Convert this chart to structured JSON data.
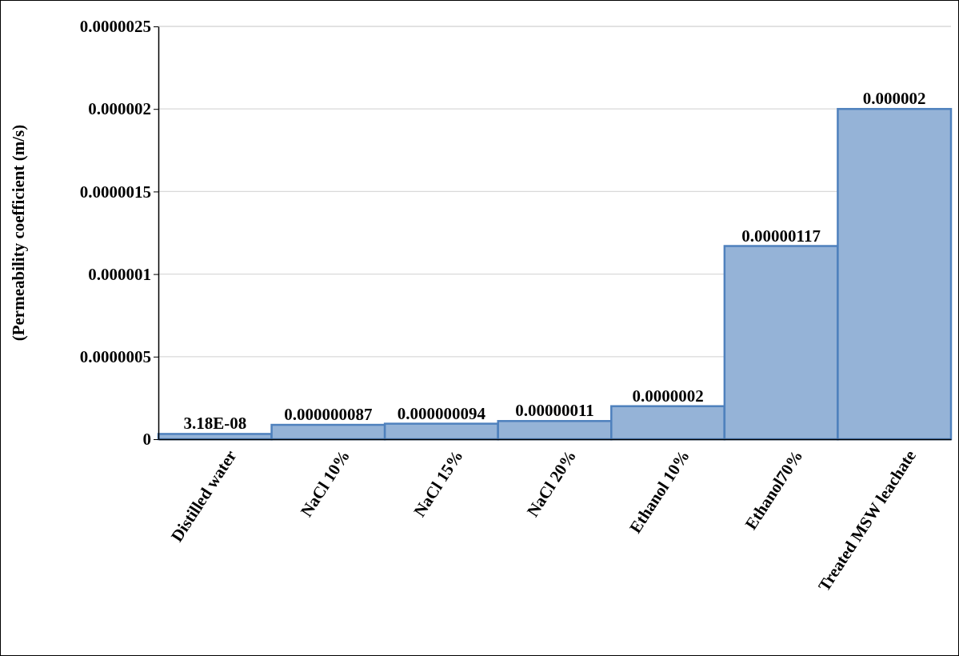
{
  "chart_data": {
    "type": "bar",
    "ylabel": "(Permeability coefficient (m/s)",
    "categories": [
      "Distilled water",
      "NaCl 10%",
      "NaCl 15%",
      "NaCl 20%",
      "Ethanol 10%",
      "Ethanol70%",
      "Treated MSW leachate"
    ],
    "values": [
      3.18e-08,
      8.7e-08,
      9.4e-08,
      1.1e-07,
      2e-07,
      1.17e-06,
      2e-06
    ],
    "value_labels": [
      "3.18E-08",
      "0.000000087",
      "0.000000094",
      "0.00000011",
      "0.0000002",
      "0.00000117",
      "0.000002"
    ],
    "color": "#95b3d7",
    "ylim": [
      0,
      2.5e-06
    ],
    "yticks": [
      {
        "value": 0,
        "label": "0"
      },
      {
        "value": 5e-07,
        "label": "0.0000005"
      },
      {
        "value": 1e-06,
        "label": "0.000001"
      },
      {
        "value": 1.5e-06,
        "label": "0.0000015"
      },
      {
        "value": 2e-06,
        "label": "0.000002"
      },
      {
        "value": 2.5e-06,
        "label": "0.0000025"
      }
    ],
    "grid": "y"
  }
}
